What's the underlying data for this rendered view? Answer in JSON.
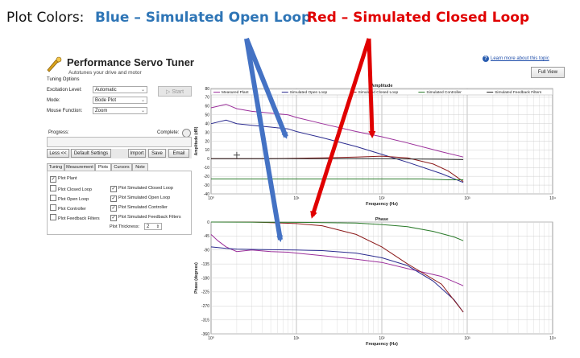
{
  "caption": {
    "label": "Plot Colors:",
    "blue": "Blue – Simulated Open Loop",
    "red": "Red – Simulated Closed Loop"
  },
  "app": {
    "title": "Performance Servo Tuner",
    "subtitle": "Autotunes your drive and motor",
    "help_link": "Learn more about this topic",
    "full_view": "Full View"
  },
  "tuning_options": {
    "group_label": "Tuning Options",
    "excitation_label": "Excitation Level:",
    "excitation_value": "Automatic",
    "mode_label": "Mode:",
    "mode_value": "Bode Plot",
    "mouse_label": "Mouse Function:",
    "mouse_value": "Zoom",
    "start": "Start"
  },
  "progress": {
    "label": "Progress:",
    "complete": "Complete:"
  },
  "buttons": {
    "less": "Less <<",
    "default_settings": "Default Settings",
    "import": "Import",
    "save": "Save",
    "email": "Email"
  },
  "tabs": [
    "Tuning",
    "Measurement",
    "Plots",
    "Cursors",
    "Note"
  ],
  "plots_options": [
    {
      "label": "Plot Plant",
      "checked": true
    },
    {
      "label": "Plot Closed Loop",
      "checked": false
    },
    {
      "label": "Plot Open Loop",
      "checked": false
    },
    {
      "label": "Plot Controller",
      "checked": false
    },
    {
      "label": "Plot Feedback Filters",
      "checked": false
    },
    {
      "label": "Plot Simulated Closed Loop",
      "checked": true
    },
    {
      "label": "Plot Simulated Open Loop",
      "checked": true
    },
    {
      "label": "Plot Simulated Controller",
      "checked": true
    },
    {
      "label": "Plot Simulated Feedback Filters",
      "checked": true
    }
  ],
  "thickness": {
    "label": "Plot Thickness:",
    "value": "2"
  },
  "check_mark": "✓",
  "chart_data": [
    {
      "type": "line",
      "title": "Amplitude",
      "xlabel": "Frequency (Hz)",
      "ylabel": "Amplitude (dB)",
      "x_scale": "log",
      "xlim": [
        1,
        10000
      ],
      "ylim": [
        -40,
        80
      ],
      "x_ticks": [
        "10⁰",
        "10¹",
        "10²",
        "10³",
        "10⁴"
      ],
      "y_ticks": [
        "80",
        "70",
        "60",
        "50",
        "40",
        "30",
        "20",
        "10",
        "0",
        "-10",
        "-20",
        "-30",
        "-40"
      ],
      "legend": [
        "Measured Plant",
        "Simulated Open Loop",
        "Simulated Closed Loop",
        "Simulated Controller",
        "Simulated Feedback Filters"
      ],
      "grid": true,
      "series": [
        {
          "name": "Measured Plant",
          "color": "#9b2f9b",
          "x": [
            1,
            1.5,
            2,
            3,
            5,
            8,
            10,
            20,
            50,
            100,
            200,
            500,
            900
          ],
          "y": [
            58,
            62,
            57,
            54,
            52,
            50,
            47,
            40,
            31,
            25,
            18,
            8,
            2
          ]
        },
        {
          "name": "Simulated Open Loop",
          "color": "#2b2b8f",
          "x": [
            1,
            1.5,
            2,
            3,
            5,
            8,
            10,
            20,
            50,
            100,
            200,
            500,
            900
          ],
          "y": [
            40,
            44,
            40,
            38,
            36,
            34,
            31,
            24,
            14,
            5,
            -4,
            -17,
            -27
          ]
        },
        {
          "name": "Simulated Closed Loop",
          "color": "#8b1a1a",
          "x": [
            1,
            5,
            10,
            20,
            50,
            100,
            200,
            400,
            600,
            900
          ],
          "y": [
            0,
            0,
            0.5,
            1,
            2,
            3,
            1,
            -6,
            -14,
            -26
          ]
        },
        {
          "name": "Simulated Controller",
          "color": "#2a7a2a",
          "x": [
            1,
            10,
            100,
            300,
            600,
            900
          ],
          "y": [
            -23,
            -23,
            -23,
            -23,
            -24,
            -24
          ]
        },
        {
          "name": "Simulated Feedback Filters",
          "color": "#222222",
          "x": [
            1,
            100,
            500,
            900
          ],
          "y": [
            0,
            0,
            -0.5,
            -1
          ]
        }
      ]
    },
    {
      "type": "line",
      "title": "Phase",
      "xlabel": "Frequency (Hz)",
      "ylabel": "Phase (degrees)",
      "x_scale": "log",
      "xlim": [
        1,
        10000
      ],
      "ylim": [
        -360,
        0
      ],
      "x_ticks": [
        "10⁰",
        "10¹",
        "10²",
        "10³",
        "10⁴"
      ],
      "y_ticks": [
        "0",
        "-45",
        "-90",
        "-135",
        "-180",
        "-225",
        "-270",
        "-315",
        "-360"
      ],
      "grid": true,
      "series": [
        {
          "name": "Measured Plant",
          "color": "#9b2f9b",
          "x": [
            1,
            1.2,
            1.5,
            2,
            3,
            5,
            8,
            10,
            20,
            50,
            100,
            200,
            500,
            900
          ],
          "y": [
            -40,
            -60,
            -80,
            -95,
            -90,
            -95,
            -97,
            -100,
            -108,
            -120,
            -130,
            -150,
            -175,
            -205
          ]
        },
        {
          "name": "Simulated Open Loop",
          "color": "#2b2b8f",
          "x": [
            1,
            1.5,
            2,
            3,
            5,
            10,
            20,
            50,
            100,
            200,
            400,
            700,
            900
          ],
          "y": [
            -80,
            -85,
            -87,
            -88,
            -89,
            -90,
            -92,
            -100,
            -115,
            -140,
            -190,
            -250,
            -290
          ]
        },
        {
          "name": "Simulated Closed Loop",
          "color": "#8b1a1a",
          "x": [
            1,
            3,
            5,
            10,
            20,
            50,
            100,
            200,
            500,
            900
          ],
          "y": [
            0,
            0,
            -2,
            -5,
            -12,
            -40,
            -80,
            -135,
            -200,
            -290
          ]
        },
        {
          "name": "Simulated Controller",
          "color": "#2a7a2a",
          "x": [
            1,
            10,
            50,
            100,
            200,
            400,
            700,
            900
          ],
          "y": [
            0,
            -1,
            -3,
            -8,
            -15,
            -30,
            -48,
            -60
          ]
        }
      ]
    }
  ]
}
